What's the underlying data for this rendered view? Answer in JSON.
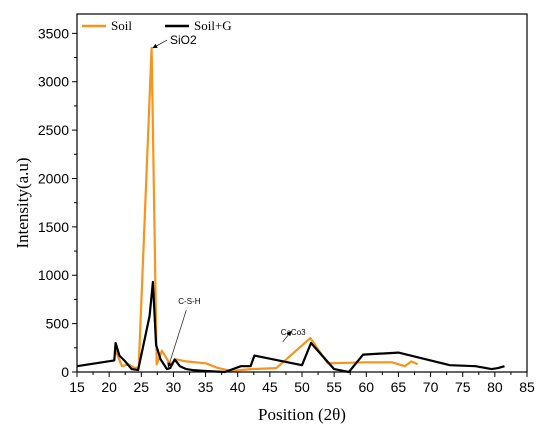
{
  "chart_data": {
    "type": "line",
    "title": "",
    "xlabel": "Position (2θ)",
    "ylabel": "Intensity(a.u)",
    "xlim": [
      15,
      85
    ],
    "ylim": [
      0,
      3700
    ],
    "xticks": [
      15,
      20,
      25,
      30,
      35,
      40,
      45,
      50,
      55,
      60,
      65,
      70,
      75,
      80,
      85
    ],
    "yticks": [
      0,
      500,
      1000,
      1500,
      2000,
      2500,
      3000,
      3500
    ],
    "grid": false,
    "legend_position": "top-left",
    "series": [
      {
        "name": "Soil",
        "color": "#f7941d",
        "points": [
          [
            21,
            220
          ],
          [
            22,
            60
          ],
          [
            23,
            80
          ],
          [
            24,
            40
          ],
          [
            24.6,
            50
          ],
          [
            26.6,
            3350
          ],
          [
            27.4,
            80
          ],
          [
            28.2,
            220
          ],
          [
            29.5,
            80
          ],
          [
            30.5,
            130
          ],
          [
            32,
            110
          ],
          [
            35,
            90
          ],
          [
            37,
            40
          ],
          [
            39,
            10
          ],
          [
            42,
            30
          ],
          [
            46,
            40
          ],
          [
            51.3,
            350
          ],
          [
            54,
            90
          ],
          [
            60,
            100
          ],
          [
            64,
            100
          ],
          [
            66,
            60
          ],
          [
            67,
            110
          ],
          [
            68,
            80
          ]
        ]
      },
      {
        "name": "Soil+G",
        "color": "#000000",
        "points": [
          [
            15,
            60
          ],
          [
            20.8,
            120
          ],
          [
            21,
            300
          ],
          [
            21.6,
            170
          ],
          [
            22.5,
            110
          ],
          [
            23.5,
            30
          ],
          [
            24.5,
            20
          ],
          [
            26.3,
            580
          ],
          [
            26.8,
            930
          ],
          [
            27.3,
            280
          ],
          [
            28,
            130
          ],
          [
            29,
            30
          ],
          [
            29.5,
            40
          ],
          [
            30.2,
            130
          ],
          [
            31,
            60
          ],
          [
            32,
            30
          ],
          [
            33,
            20
          ],
          [
            35,
            10
          ],
          [
            38,
            0
          ],
          [
            40.5,
            60
          ],
          [
            42,
            60
          ],
          [
            42.6,
            170
          ],
          [
            50,
            70
          ],
          [
            51.4,
            300
          ],
          [
            55,
            30
          ],
          [
            57.3,
            0
          ],
          [
            59.5,
            180
          ],
          [
            65,
            200
          ],
          [
            73,
            70
          ],
          [
            77,
            60
          ],
          [
            79.5,
            30
          ],
          [
            80.5,
            40
          ],
          [
            81.5,
            60
          ]
        ]
      }
    ],
    "annotations": [
      {
        "text": "SiO2",
        "arrow_from": [
          29,
          3430
        ],
        "arrow_to": [
          26.8,
          3350
        ]
      },
      {
        "text": "C-S-H",
        "arrow_from": [
          32,
          640
        ],
        "arrow_to": [
          29.2,
          50
        ]
      },
      {
        "text": "CaCo3",
        "arrow_from": [
          47,
          310
        ],
        "arrow_to": [
          48.3,
          420
        ]
      }
    ]
  }
}
